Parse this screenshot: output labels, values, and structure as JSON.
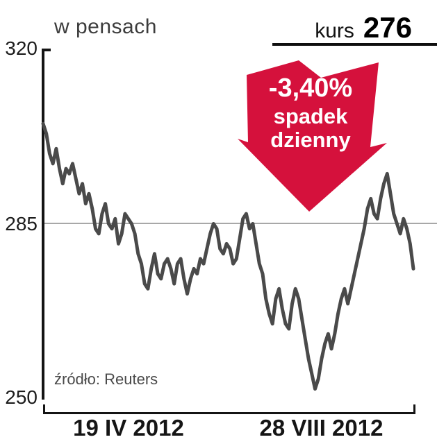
{
  "header": {
    "unit_label": "w pensach",
    "price_label": "kurs",
    "price_value": "276"
  },
  "annotation": {
    "percent_change": "-3,40%",
    "caption_line1": "spadek",
    "caption_line2": "dzienny",
    "arrow_color": "#d5113c"
  },
  "source_note": "źródło: Reuters",
  "chart_data": {
    "type": "line",
    "title": "",
    "ylabel": "w pensach",
    "ylim": [
      250,
      320
    ],
    "ytick_labels": [
      "320",
      "285",
      "250"
    ],
    "gridlines_y": [
      285
    ],
    "x_tick_labels": [
      "19 IV 2012",
      "28 VIII 2012"
    ],
    "legend": "none",
    "last_value": 276,
    "daily_change_percent": -3.4,
    "source": "Reuters",
    "series": [
      {
        "name": "kurs",
        "color": "#4a4a4a",
        "values": [
          305,
          303,
          299,
          297,
          300,
          296,
          293,
          296,
          295,
          297,
          294,
          291,
          293,
          289,
          291,
          288,
          284,
          283,
          287,
          289,
          285,
          284,
          286,
          281,
          283,
          287,
          286,
          285,
          283,
          279,
          277,
          273,
          272,
          276,
          279,
          275,
          274,
          277,
          278,
          276,
          273,
          277,
          278,
          274,
          271,
          274,
          276,
          275,
          278,
          277,
          280,
          283,
          285,
          284,
          280,
          279,
          281,
          280,
          277,
          278,
          282,
          286,
          287,
          284,
          285,
          281,
          277,
          275,
          270,
          267,
          265,
          270,
          272,
          268,
          265,
          264,
          269,
          272,
          270,
          266,
          262,
          258,
          255,
          252,
          254,
          258,
          261,
          263,
          260,
          263,
          267,
          270,
          272,
          269,
          272,
          275,
          278,
          281,
          284,
          288,
          290,
          287,
          286,
          290,
          293,
          295,
          291,
          287,
          285,
          283,
          286,
          284,
          281,
          276
        ]
      }
    ]
  }
}
